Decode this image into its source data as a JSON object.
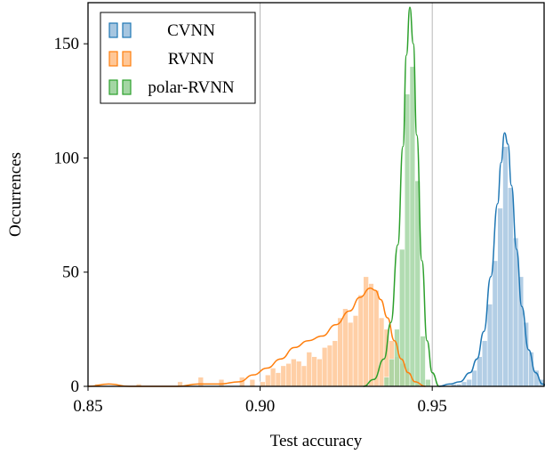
{
  "chart_data": {
    "type": "bar",
    "subtype": "histogram-with-kde",
    "title": "",
    "xlabel": "Test accuracy",
    "ylabel": "Occurrences",
    "xlim": [
      0.85,
      0.9825
    ],
    "ylim": [
      0,
      168
    ],
    "xticks": [
      0.85,
      0.9,
      0.95
    ],
    "xtick_labels": [
      "0.85",
      "0.90",
      "0.95"
    ],
    "yticks": [
      0,
      50,
      100,
      150
    ],
    "ytick_labels": [
      "0",
      "50",
      "100",
      "150"
    ],
    "vertical_gridlines": [
      0.9,
      0.95
    ],
    "grid": "x-only",
    "legend": {
      "placement": "top-left",
      "entries": [
        "CVNN",
        "RVNN",
        "polar-RVNN"
      ]
    },
    "bin_width": 0.0015,
    "series": [
      {
        "name": "CVNN",
        "color": "#1f77b4",
        "bar_color": "#a6c6e0",
        "bins": [
          [
            0.9555,
            1
          ],
          [
            0.957,
            1
          ],
          [
            0.9585,
            2
          ],
          [
            0.96,
            3
          ],
          [
            0.9615,
            7
          ],
          [
            0.963,
            13
          ],
          [
            0.9645,
            20
          ],
          [
            0.966,
            36
          ],
          [
            0.9675,
            55
          ],
          [
            0.969,
            78
          ],
          [
            0.9705,
            105
          ],
          [
            0.972,
            87
          ],
          [
            0.9735,
            65
          ],
          [
            0.975,
            48
          ],
          [
            0.9765,
            28
          ],
          [
            0.978,
            15
          ],
          [
            0.9795,
            7
          ],
          [
            0.981,
            3
          ],
          [
            0.9825,
            1
          ]
        ],
        "kde": [
          [
            0.952,
            0
          ],
          [
            0.955,
            1
          ],
          [
            0.958,
            2
          ],
          [
            0.961,
            6
          ],
          [
            0.963,
            12
          ],
          [
            0.965,
            24
          ],
          [
            0.967,
            48
          ],
          [
            0.969,
            80
          ],
          [
            0.97,
            98
          ],
          [
            0.971,
            111
          ],
          [
            0.972,
            106
          ],
          [
            0.973,
            88
          ],
          [
            0.9745,
            60
          ],
          [
            0.976,
            35
          ],
          [
            0.978,
            16
          ],
          [
            0.98,
            6
          ],
          [
            0.982,
            1
          ],
          [
            0.984,
            0
          ]
        ]
      },
      {
        "name": "RVNN",
        "color": "#ff7f0e",
        "bar_color": "#ffc797",
        "bins": [
          [
            0.852,
            1
          ],
          [
            0.864,
            1
          ],
          [
            0.876,
            2
          ],
          [
            0.882,
            4
          ],
          [
            0.888,
            3
          ],
          [
            0.894,
            4
          ],
          [
            0.897,
            3
          ],
          [
            0.9,
            2
          ],
          [
            0.9015,
            5
          ],
          [
            0.903,
            8
          ],
          [
            0.9045,
            6
          ],
          [
            0.906,
            9
          ],
          [
            0.9075,
            10
          ],
          [
            0.909,
            12
          ],
          [
            0.9105,
            11
          ],
          [
            0.912,
            9
          ],
          [
            0.9135,
            15
          ],
          [
            0.915,
            13
          ],
          [
            0.9165,
            12
          ],
          [
            0.918,
            17
          ],
          [
            0.9195,
            18
          ],
          [
            0.921,
            20
          ],
          [
            0.9225,
            30
          ],
          [
            0.924,
            34
          ],
          [
            0.9255,
            28
          ],
          [
            0.927,
            31
          ],
          [
            0.9285,
            40
          ],
          [
            0.93,
            48
          ],
          [
            0.9315,
            45
          ],
          [
            0.933,
            42
          ],
          [
            0.9345,
            30
          ],
          [
            0.936,
            25
          ],
          [
            0.9375,
            20
          ],
          [
            0.939,
            13
          ],
          [
            0.9405,
            10
          ],
          [
            0.942,
            8
          ],
          [
            0.9435,
            3
          ],
          [
            0.945,
            1
          ]
        ],
        "kde": [
          [
            0.85,
            0
          ],
          [
            0.856,
            1
          ],
          [
            0.862,
            0
          ],
          [
            0.87,
            0
          ],
          [
            0.876,
            0
          ],
          [
            0.882,
            1
          ],
          [
            0.888,
            1
          ],
          [
            0.894,
            2
          ],
          [
            0.898,
            5
          ],
          [
            0.902,
            8
          ],
          [
            0.906,
            12
          ],
          [
            0.91,
            17
          ],
          [
            0.914,
            20
          ],
          [
            0.918,
            22
          ],
          [
            0.922,
            27
          ],
          [
            0.926,
            33
          ],
          [
            0.929,
            39
          ],
          [
            0.932,
            43
          ],
          [
            0.9335,
            42
          ],
          [
            0.935,
            38
          ],
          [
            0.937,
            30
          ],
          [
            0.939,
            20
          ],
          [
            0.941,
            12
          ],
          [
            0.943,
            6
          ],
          [
            0.945,
            2
          ],
          [
            0.948,
            0
          ]
        ]
      },
      {
        "name": "polar-RVNN",
        "color": "#2ca02c",
        "bar_color": "#a3d6a3",
        "bins": [
          [
            0.936,
            4
          ],
          [
            0.9375,
            12
          ],
          [
            0.939,
            25
          ],
          [
            0.9405,
            60
          ],
          [
            0.942,
            128
          ],
          [
            0.9435,
            140
          ],
          [
            0.945,
            90
          ],
          [
            0.9465,
            22
          ],
          [
            0.948,
            3
          ]
        ],
        "kde": [
          [
            0.93,
            0
          ],
          [
            0.933,
            3
          ],
          [
            0.936,
            12
          ],
          [
            0.938,
            28
          ],
          [
            0.94,
            62
          ],
          [
            0.9415,
            105
          ],
          [
            0.9425,
            145
          ],
          [
            0.9435,
            166
          ],
          [
            0.9445,
            150
          ],
          [
            0.9455,
            110
          ],
          [
            0.947,
            55
          ],
          [
            0.9485,
            20
          ],
          [
            0.95,
            6
          ],
          [
            0.952,
            0
          ]
        ]
      }
    ]
  }
}
